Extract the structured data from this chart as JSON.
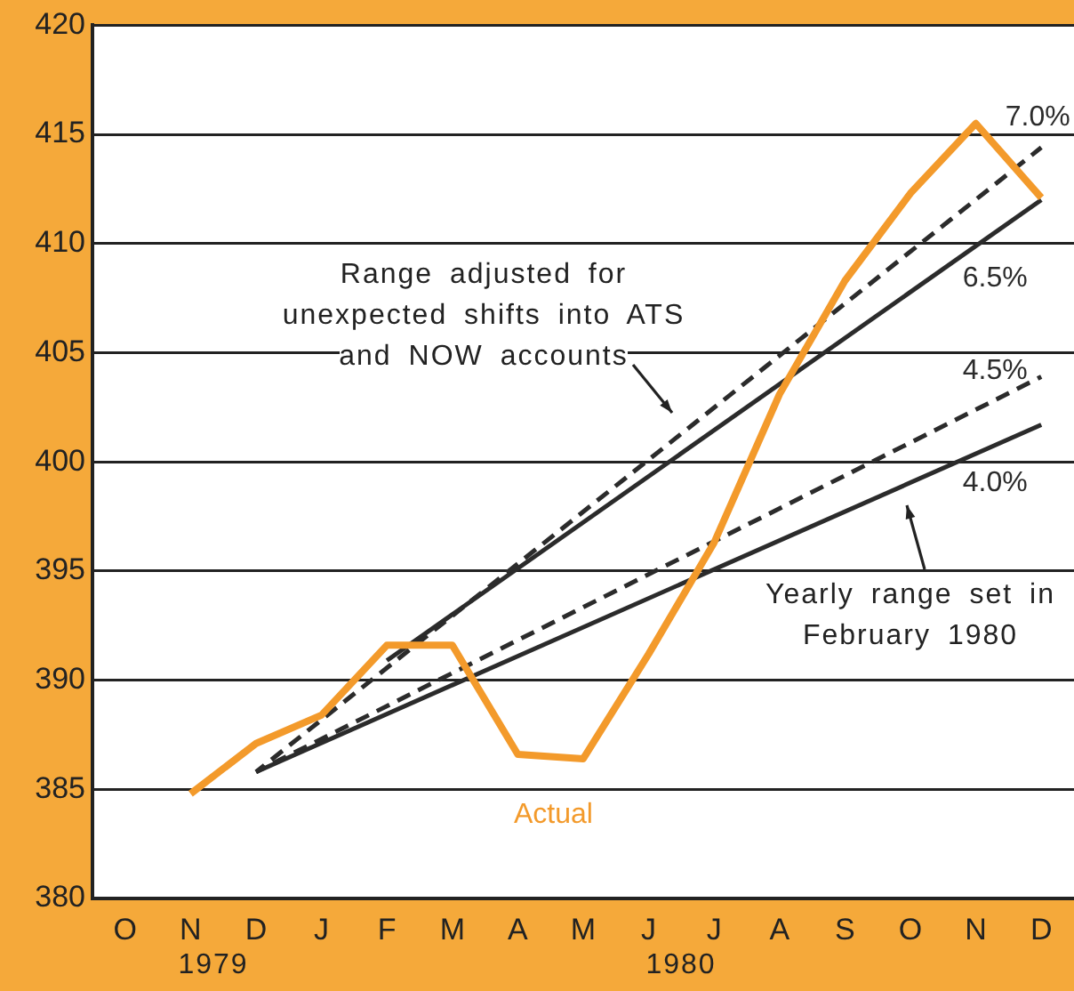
{
  "chart_data": {
    "type": "line",
    "categories": [
      "O",
      "N",
      "D",
      "J",
      "F",
      "M",
      "A",
      "M",
      "J",
      "J",
      "A",
      "S",
      "O",
      "N",
      "D"
    ],
    "series": [
      {
        "name": "Actual",
        "color": "#f39a2b",
        "values": [
          null,
          384.8,
          387.1,
          388.4,
          391.6,
          391.6,
          386.6,
          386.4,
          391.2,
          396.3,
          403.1,
          408.3,
          412.3,
          415.5,
          412.1
        ]
      },
      {
        "name": "7.0%",
        "color": "#2b2b2b",
        "line_style": "dashed",
        "values": [
          null,
          null,
          385.8,
          null,
          null,
          null,
          null,
          null,
          null,
          null,
          null,
          null,
          null,
          null,
          414.4
        ]
      },
      {
        "name": "6.5%",
        "color": "#2b2b2b",
        "line_style": "solid",
        "values": [
          null,
          null,
          null,
          null,
          390.9,
          null,
          null,
          null,
          null,
          null,
          null,
          null,
          null,
          null,
          412.0
        ]
      },
      {
        "name": "4.5%",
        "color": "#2b2b2b",
        "line_style": "dashed",
        "values": [
          null,
          null,
          385.8,
          null,
          null,
          null,
          null,
          null,
          null,
          null,
          null,
          null,
          null,
          null,
          403.9
        ]
      },
      {
        "name": "4.0%",
        "color": "#2b2b2b",
        "line_style": "solid",
        "values": [
          null,
          null,
          385.8,
          null,
          null,
          null,
          null,
          null,
          null,
          null,
          null,
          null,
          null,
          null,
          401.7
        ]
      }
    ],
    "ylim": [
      380,
      420
    ],
    "yticks": [
      380,
      385,
      390,
      395,
      400,
      405,
      410,
      415,
      420
    ],
    "grid": "y",
    "legend": false,
    "marker": "none",
    "annotations": [
      "Range adjusted for unexpected shifts into ATS and NOW accounts",
      "Yearly range set in February 1980",
      "1979",
      "1980"
    ]
  }
}
